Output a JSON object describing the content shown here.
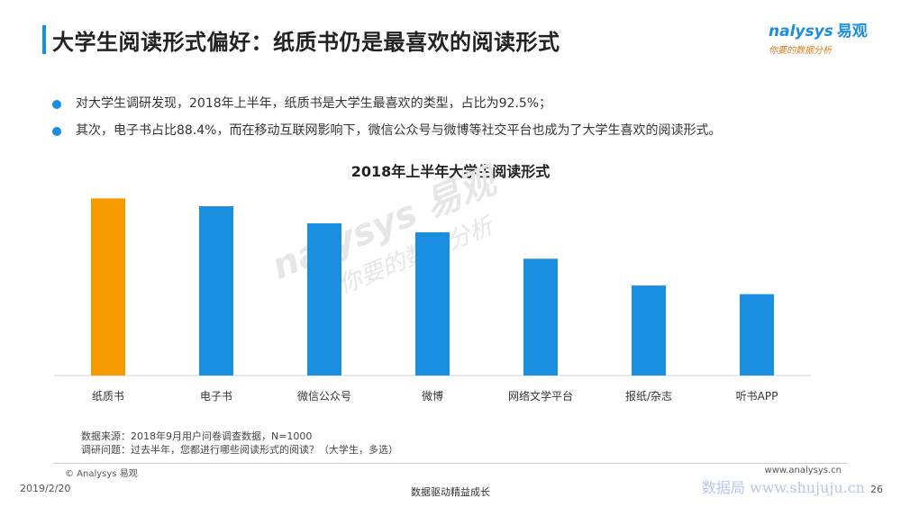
{
  "header": {
    "title": "大学生阅读形式偏好：纸质书仍是最喜欢的阅读形式"
  },
  "logo": {
    "brand": "nalysys",
    "brand_cn": "易观",
    "slogan": "你要的数据分析"
  },
  "bullets": [
    "对大学生调研发现，2018年上半年，纸质书是大学生最喜欢的类型，占比为92.5%；",
    "其次，电子书占比88.4%，而在移动互联网影响下，微信公众号与微博等社交平台也成为了大学生喜欢的阅读形式。"
  ],
  "chart_data": {
    "type": "bar",
    "title": "2018年上半年大学生阅读形式",
    "categories": [
      "纸质书",
      "电子书",
      "微信公众号",
      "微博",
      "网络文学平台",
      "报纸/杂志",
      "听书APP"
    ],
    "values": [
      92.5,
      88.4,
      79.5,
      74.8,
      61.0,
      47.0,
      42.5
    ],
    "ylim": [
      0,
      95
    ],
    "highlight_color": "#f59a00",
    "bar_color": "#1a8ee0",
    "highlight_index": 0,
    "xlabel": "",
    "ylabel": "",
    "grid": false
  },
  "watermark": {
    "line1": "nalysys 易观",
    "line2": "你要的数据分析"
  },
  "notes": {
    "source": "数据来源：2018年9月用户问卷调查数据，N=1000",
    "question": "调研问题：过去半年，您都进行哪些阅读形式的阅读？（大学生，多选）"
  },
  "footer": {
    "copyright": "© Analysys 易观",
    "website": "www.analysys.cn",
    "date": "2019/2/20",
    "center": "数据驱动精益成长",
    "stamp": "数据局 www.shujuju.cn",
    "page": "26"
  }
}
